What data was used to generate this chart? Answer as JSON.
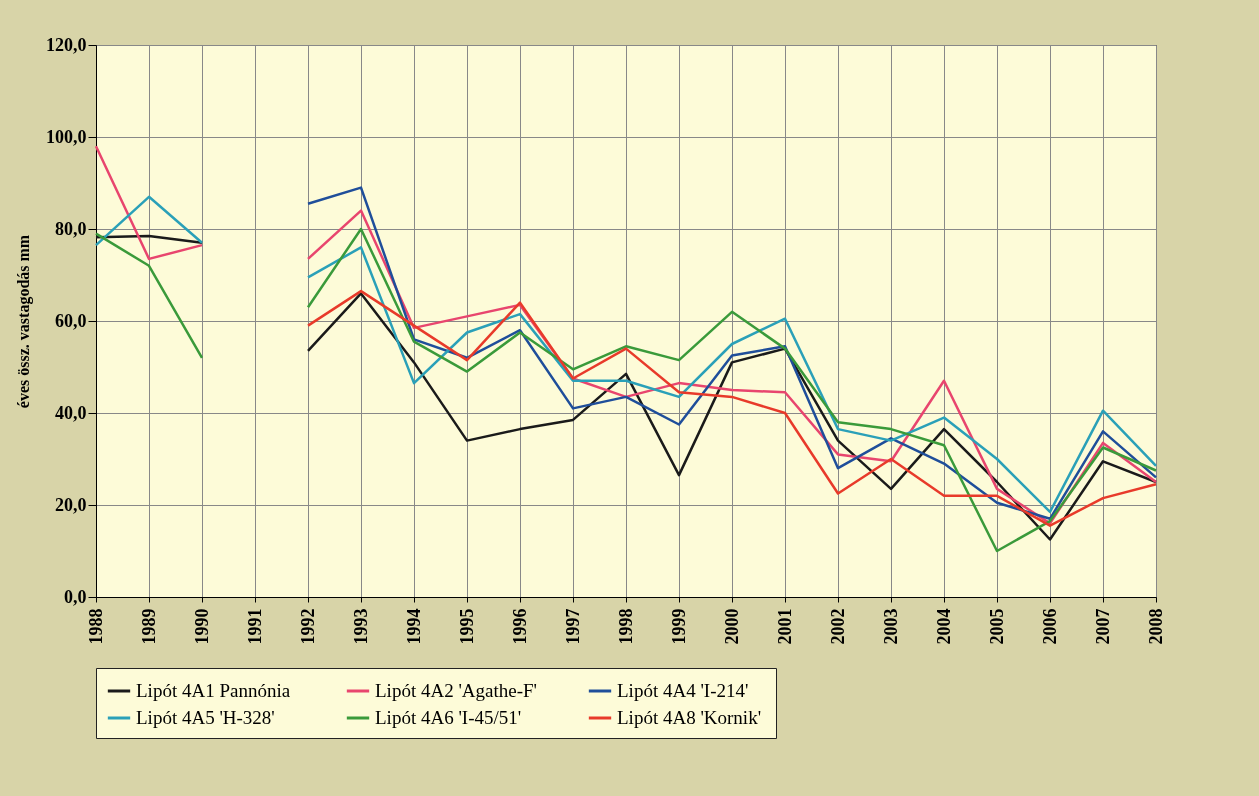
{
  "chart_data": {
    "type": "line",
    "ylabel": "éves össz. vastagodás mm",
    "categories": [
      "1988",
      "1989",
      "1990",
      "1991",
      "1992",
      "1993",
      "1994",
      "1995",
      "1996",
      "1997",
      "1998",
      "1999",
      "2000",
      "2001",
      "2002",
      "2003",
      "2004",
      "2005",
      "2006",
      "2007",
      "2008"
    ],
    "series": [
      {
        "name": "Lipót 4A1   Pannónia",
        "color": "#1a1a1a",
        "values": [
          78.2,
          78.5,
          77,
          null,
          53.5,
          66,
          51,
          34,
          36.5,
          38.5,
          48.5,
          26.5,
          51,
          54,
          34,
          23.5,
          36.5,
          25,
          12.5,
          29.5,
          25
        ]
      },
      {
        "name": "Lipót 4A2  'Agathe-F'",
        "color": "#e8456e",
        "values": [
          98,
          73.5,
          76.5,
          null,
          73.5,
          84,
          58.5,
          61,
          63.5,
          47.5,
          43.5,
          46.5,
          45,
          44.5,
          31,
          29.5,
          47,
          23.5,
          16,
          33.5,
          25
        ]
      },
      {
        "name": "Lipót 4A4  'I-214'",
        "color": "#1f4e9a",
        "values": [
          null,
          null,
          null,
          null,
          85.5,
          89,
          56,
          52,
          58,
          41,
          43.5,
          37.5,
          52.5,
          54.5,
          28,
          34.5,
          29,
          20.5,
          17,
          36,
          26
        ]
      },
      {
        "name": "Lipót 4A5  'H-328'",
        "color": "#2aa0b8",
        "values": [
          76.5,
          87,
          77,
          null,
          69.5,
          76,
          46.5,
          57.5,
          61.5,
          47,
          47,
          43.5,
          55,
          60.5,
          36.5,
          34,
          39,
          30,
          18.5,
          40.5,
          28.5
        ]
      },
      {
        "name": "Lipót 4A6  'I-45/51'",
        "color": "#3a9a3a",
        "values": [
          79,
          72,
          52,
          null,
          63,
          80,
          55.5,
          49,
          57.5,
          49.5,
          54.5,
          51.5,
          62,
          54,
          38,
          36.5,
          33,
          10,
          16.5,
          32.5,
          27.5
        ]
      },
      {
        "name": "Lipót 4A8  'Kornik'",
        "color": "#e83a2a",
        "values": [
          null,
          null,
          null,
          null,
          59,
          66.5,
          59,
          51.5,
          64,
          47.5,
          54,
          44.5,
          43.5,
          40,
          22.5,
          30,
          22,
          22,
          15.5,
          21.5,
          24.5
        ]
      }
    ],
    "ylim": [
      0,
      120
    ],
    "yticks": [
      {
        "value": 0,
        "label": "0,0"
      },
      {
        "value": 20,
        "label": "20,0"
      },
      {
        "value": 40,
        "label": "40,0"
      },
      {
        "value": 60,
        "label": "60,0"
      },
      {
        "value": 80,
        "label": "80,0"
      },
      {
        "value": 100,
        "label": "100,0"
      },
      {
        "value": 120,
        "label": "120,0"
      }
    ],
    "grid": true,
    "legend": "bottom",
    "marker": "none",
    "line_style": "solid"
  }
}
